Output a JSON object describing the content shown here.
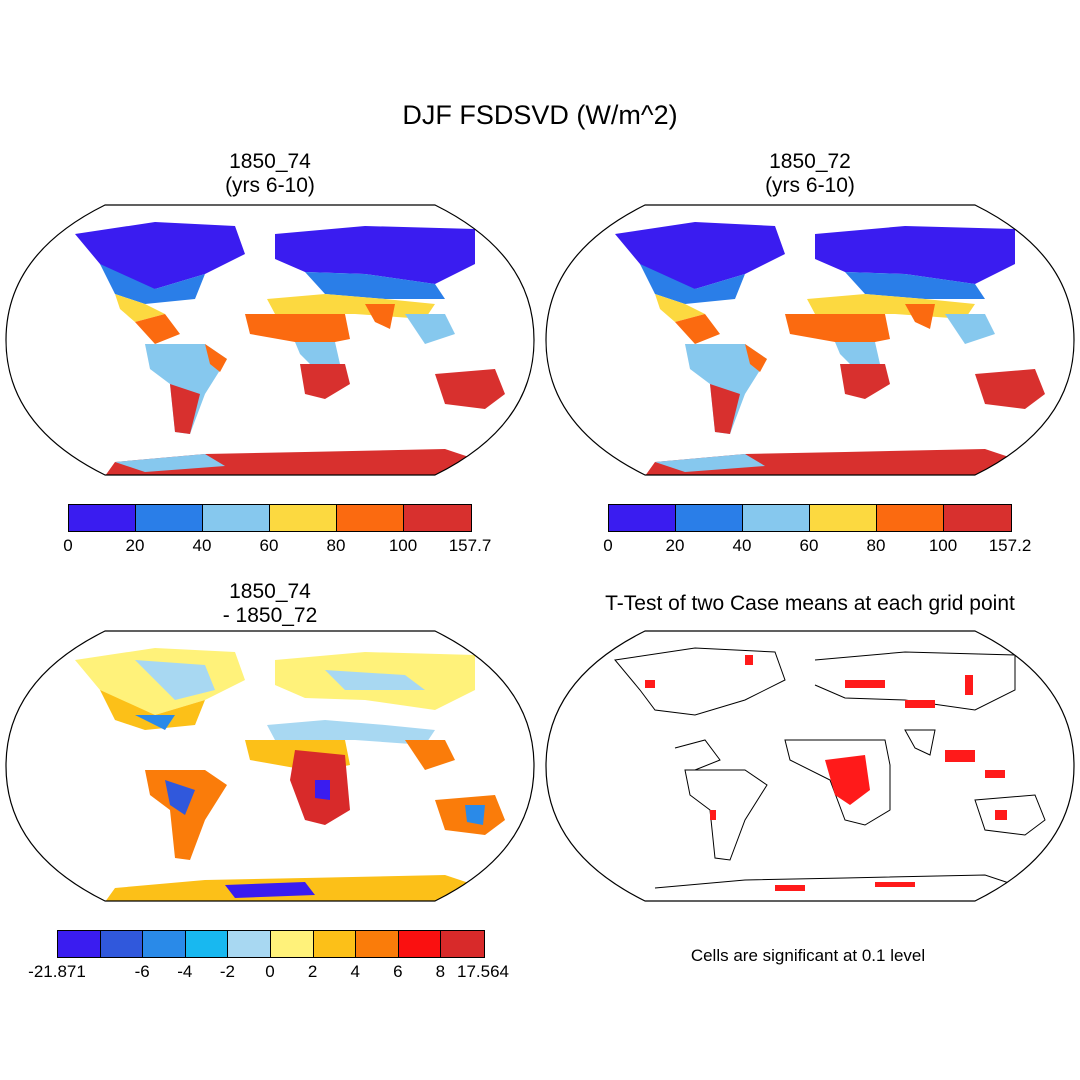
{
  "figure_title": "DJF FSDSVD (W/m^2)",
  "panels": [
    {
      "id": "case1",
      "title_line1": "1850_74",
      "title_line2": "(yrs 6-10)",
      "colorbar": {
        "colors": [
          "#3a1cf0",
          "#2a7ee8",
          "#86c8ee",
          "#fcd940",
          "#fb6a10",
          "#d8302e"
        ],
        "labels": [
          "0",
          "20",
          "40",
          "60",
          "80",
          "100",
          "157.7"
        ]
      }
    },
    {
      "id": "case2",
      "title_line1": "1850_72",
      "title_line2": "(yrs 6-10)",
      "colorbar": {
        "colors": [
          "#3a1cf0",
          "#2a7ee8",
          "#86c8ee",
          "#fcd940",
          "#fb6a10",
          "#d8302e"
        ],
        "labels": [
          "0",
          "20",
          "40",
          "60",
          "80",
          "100",
          "157.2"
        ]
      }
    },
    {
      "id": "difference",
      "title_line1": "1850_74",
      "title_line2": "- 1850_72",
      "colorbar": {
        "colors": [
          "#3a1cf0",
          "#3058dc",
          "#2a8ae8",
          "#18b8f0",
          "#a8d8f2",
          "#fff27a",
          "#fcc018",
          "#fa7c0a",
          "#fa1010",
          "#d82a2a"
        ],
        "labels": [
          "-21.871",
          "",
          "-6",
          "-4",
          "-2",
          "0",
          "2",
          "4",
          "6",
          "8",
          "17.564"
        ]
      }
    },
    {
      "id": "ttest",
      "title_line1": "T-Test of two Case means at each grid point",
      "title_line2": "",
      "note": "Cells are significant at 0.1 level",
      "significant_color": "#ff1a1a"
    }
  ]
}
